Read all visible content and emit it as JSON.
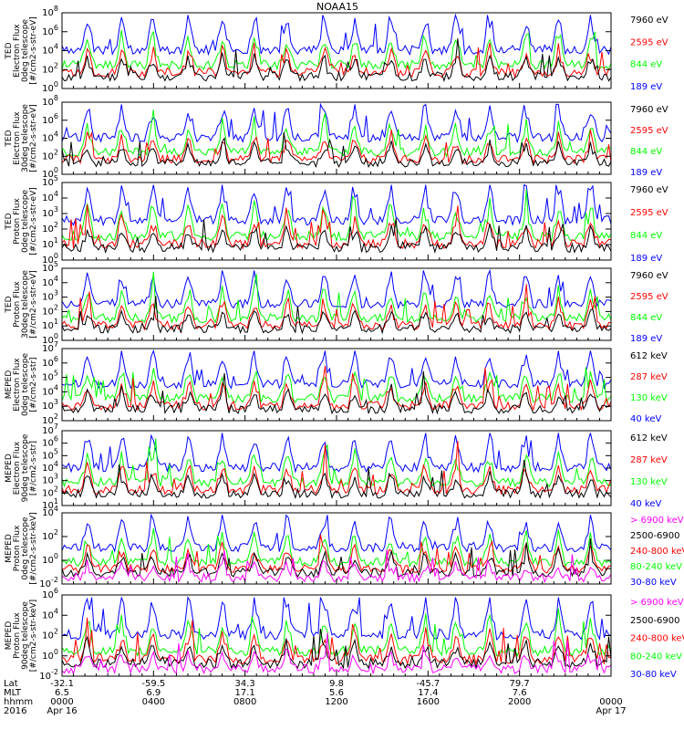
{
  "chart_data": {
    "type": "line",
    "title": "NOAA15",
    "x_range": [
      "0000 Apr 16",
      "0000 Apr 17"
    ],
    "colors": {
      "black": "#000000",
      "red": "#ff0000",
      "green": "#00ff00",
      "blue": "#0000ff",
      "magenta": "#ff00ff"
    },
    "panels": [
      {
        "ylabel": [
          "TED",
          "Electron Flux",
          "0deg telescope",
          "[#/cm2-s-str-eV]"
        ],
        "y_log": true,
        "y_ticks": [
          {
            "base": "10",
            "exp": "0"
          },
          {
            "base": "10",
            "exp": "2"
          },
          {
            "base": "10",
            "exp": "4"
          },
          {
            "base": "10",
            "exp": "6"
          },
          {
            "base": "10",
            "exp": "8"
          }
        ],
        "series": [
          {
            "name": "7960 eV",
            "color": "#000000"
          },
          {
            "name": "2595 eV",
            "color": "#ff0000"
          },
          {
            "name": "844 eV",
            "color": "#00ff00"
          },
          {
            "name": "189 eV",
            "color": "#0000ff"
          }
        ]
      },
      {
        "ylabel": [
          "TED",
          "Electron Flux",
          "30deg telescope",
          "[#/cm2-s-str-eV]"
        ],
        "y_log": true,
        "y_ticks": [
          {
            "base": "10",
            "exp": "0"
          },
          {
            "base": "10",
            "exp": "2"
          },
          {
            "base": "10",
            "exp": "4"
          },
          {
            "base": "10",
            "exp": "6"
          },
          {
            "base": "10",
            "exp": "8"
          }
        ],
        "series": [
          {
            "name": "7960 eV",
            "color": "#000000"
          },
          {
            "name": "2595 eV",
            "color": "#ff0000"
          },
          {
            "name": "844 eV",
            "color": "#00ff00"
          },
          {
            "name": "189 eV",
            "color": "#0000ff"
          }
        ]
      },
      {
        "ylabel": [
          "TED",
          "Proton Flux",
          "0deg telescope",
          "[#/cm2-s-str-eV]"
        ],
        "y_log": true,
        "y_ticks": [
          {
            "base": "10",
            "exp": "0"
          },
          {
            "base": "10",
            "exp": "1"
          },
          {
            "base": "10",
            "exp": "2"
          },
          {
            "base": "10",
            "exp": "3"
          },
          {
            "base": "10",
            "exp": "4"
          },
          {
            "base": "10",
            "exp": "5"
          }
        ],
        "series": [
          {
            "name": "7960 eV",
            "color": "#000000"
          },
          {
            "name": "2595 eV",
            "color": "#ff0000"
          },
          {
            "name": "844 eV",
            "color": "#00ff00"
          },
          {
            "name": "189 eV",
            "color": "#0000ff"
          }
        ]
      },
      {
        "ylabel": [
          "TED",
          "Proton Flux",
          "30deg telescope",
          "[#/cm2-s-str-eV]"
        ],
        "y_log": true,
        "y_ticks": [
          {
            "base": "10",
            "exp": "0"
          },
          {
            "base": "10",
            "exp": "1"
          },
          {
            "base": "10",
            "exp": "2"
          },
          {
            "base": "10",
            "exp": "3"
          },
          {
            "base": "10",
            "exp": "4"
          },
          {
            "base": "10",
            "exp": "5"
          }
        ],
        "series": [
          {
            "name": "7960 eV",
            "color": "#000000"
          },
          {
            "name": "2595 eV",
            "color": "#ff0000"
          },
          {
            "name": "844 eV",
            "color": "#00ff00"
          },
          {
            "name": "189 eV",
            "color": "#0000ff"
          }
        ]
      },
      {
        "ylabel": [
          "MEPED",
          "Electron Flux",
          "0deg telescope",
          "[#/cm2-s-str]"
        ],
        "y_log": true,
        "y_ticks": [
          {
            "base": "10",
            "exp": "2"
          },
          {
            "base": "10",
            "exp": "3"
          },
          {
            "base": "10",
            "exp": "4"
          },
          {
            "base": "10",
            "exp": "5"
          },
          {
            "base": "10",
            "exp": "6"
          },
          {
            "base": "10",
            "exp": "7"
          }
        ],
        "series": [
          {
            "name": "612 keV",
            "color": "#000000"
          },
          {
            "name": "287 keV",
            "color": "#ff0000"
          },
          {
            "name": "130 keV",
            "color": "#00ff00"
          },
          {
            "name": "40 keV",
            "color": "#0000ff"
          }
        ]
      },
      {
        "ylabel": [
          "MEPED",
          "Electron Flux",
          "90deg telescope",
          "[#/cm2-s-str]"
        ],
        "y_log": true,
        "y_ticks": [
          {
            "base": "10",
            "exp": "1"
          },
          {
            "base": "10",
            "exp": "2"
          },
          {
            "base": "10",
            "exp": "3"
          },
          {
            "base": "10",
            "exp": "4"
          },
          {
            "base": "10",
            "exp": "5"
          },
          {
            "base": "10",
            "exp": "6"
          },
          {
            "base": "10",
            "exp": "7"
          }
        ],
        "series": [
          {
            "name": "612 keV",
            "color": "#000000"
          },
          {
            "name": "287 keV",
            "color": "#ff0000"
          },
          {
            "name": "130 keV",
            "color": "#00ff00"
          },
          {
            "name": "40 keV",
            "color": "#0000ff"
          }
        ]
      },
      {
        "ylabel": [
          "MEPED",
          "Proton Flux",
          "0deg telescope",
          "[#/cm2-s-str-keV]"
        ],
        "y_log": true,
        "y_ticks": [
          {
            "base": "10",
            "exp": "-2"
          },
          {
            "base": "10",
            "exp": "0"
          },
          {
            "base": "10",
            "exp": "2"
          },
          {
            "base": "10",
            "exp": "4"
          }
        ],
        "series": [
          {
            "name": "> 6900 keV",
            "color": "#ff00ff"
          },
          {
            "name": "2500-6900",
            "color": "#000000"
          },
          {
            "name": "240-800 keV",
            "color": "#ff0000"
          },
          {
            "name": "80-240 keV",
            "color": "#00ff00"
          },
          {
            "name": "30-80 keV",
            "color": "#0000ff"
          }
        ]
      },
      {
        "ylabel": [
          "MEPED",
          "Proton Flux",
          "90deg telescope",
          "[#/cm2-s-str-keV]"
        ],
        "y_log": true,
        "y_ticks": [
          {
            "base": "10",
            "exp": "-2"
          },
          {
            "base": "10",
            "exp": "0"
          },
          {
            "base": "10",
            "exp": "2"
          },
          {
            "base": "10",
            "exp": "4"
          },
          {
            "base": "10",
            "exp": "6"
          }
        ],
        "series": [
          {
            "name": "> 6900 keV",
            "color": "#ff00ff"
          },
          {
            "name": "2500-6900",
            "color": "#000000"
          },
          {
            "name": "240-800 keV",
            "color": "#ff0000"
          },
          {
            "name": "80-240 keV",
            "color": "#00ff00"
          },
          {
            "name": "30-80 keV",
            "color": "#0000ff"
          }
        ]
      }
    ],
    "x_axis": {
      "row_labels": [
        "Lat",
        "MLT",
        "hhmm",
        "2016"
      ],
      "ticks": [
        {
          "Lat": "-32.1",
          "MLT": "6.5",
          "hhmm": "0000",
          "date": "Apr 16"
        },
        {
          "Lat": "-59.5",
          "MLT": "6.9",
          "hhmm": "0400",
          "date": ""
        },
        {
          "Lat": "34.3",
          "MLT": "17.1",
          "hhmm": "0800",
          "date": ""
        },
        {
          "Lat": "9.8",
          "MLT": "5.6",
          "hhmm": "1200",
          "date": ""
        },
        {
          "Lat": "-45.7",
          "MLT": "17.4",
          "hhmm": "1600",
          "date": ""
        },
        {
          "Lat": "79.7",
          "MLT": "7.6",
          "hhmm": "2000",
          "date": ""
        },
        {
          "Lat": "",
          "MLT": "",
          "hhmm": "0000",
          "date": "Apr 17"
        }
      ]
    }
  }
}
